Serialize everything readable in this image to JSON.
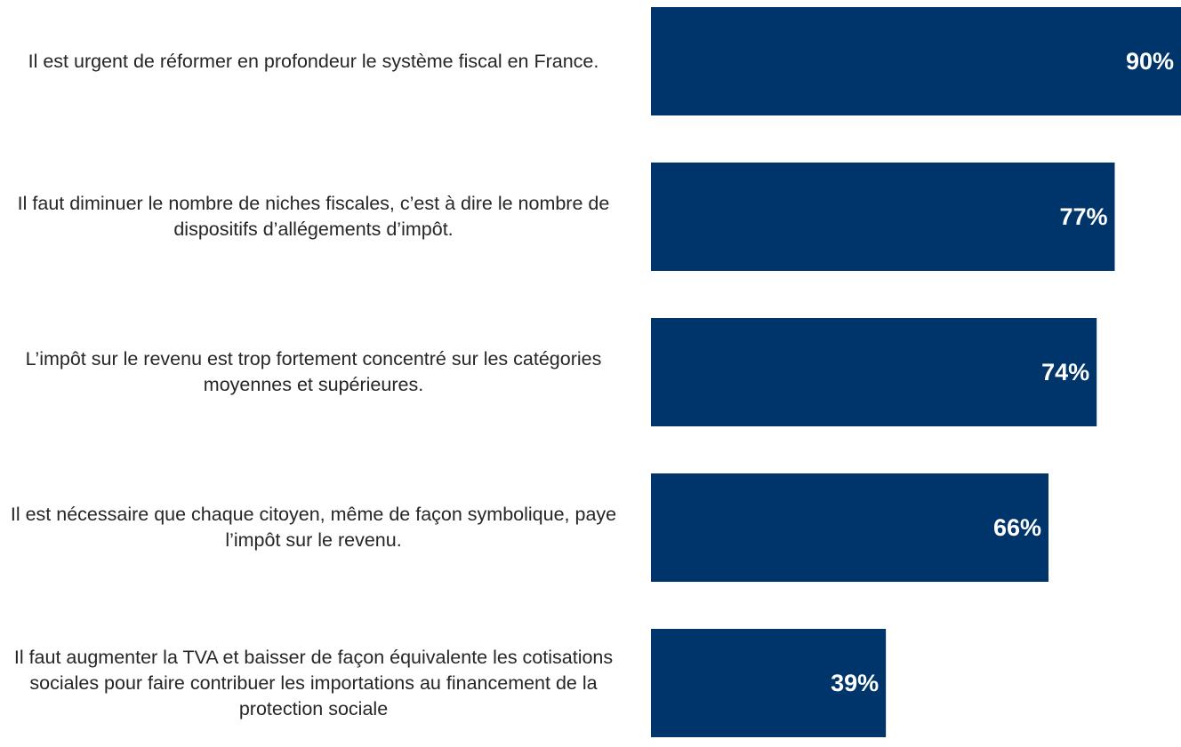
{
  "chart_data": {
    "type": "barh",
    "categories": [
      "Il est urgent de réformer en profondeur le système fiscal en France.",
      "Il faut diminuer le nombre de niches fiscales, c’est à dire le nombre de dispositifs d’allégements d’impôt.",
      "L’impôt sur le revenu est trop fortement concentré sur les catégories moyennes et supérieures.",
      "Il est nécessaire que chaque citoyen, même de façon symbolique, paye l’impôt sur le revenu.",
      "Il faut augmenter la TVA et baisser de façon équivalente les cotisations sociales pour faire contribuer les importations au financement de la protection sociale"
    ],
    "values": [
      90,
      77,
      74,
      66,
      39
    ],
    "value_labels": [
      "90%",
      "77%",
      "74%",
      "66%",
      "39%"
    ],
    "color": "#00356b",
    "xlim": [
      0,
      88
    ]
  }
}
